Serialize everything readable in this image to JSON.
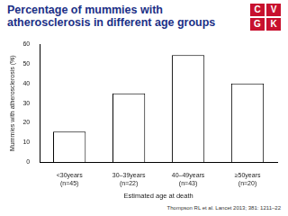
{
  "chart_data": {
    "type": "bar",
    "title": "Percentage of mummies with atherosclerosis in different age groups",
    "logo": [
      "C",
      "V",
      "G",
      "K"
    ],
    "source": "Thompson RL et al. Lancet 2013; 381: 1211–22",
    "x_label": "Estimated age at death",
    "y_label": "Mummies with atherosclerosis (%)",
    "categories": [
      [
        "<30years",
        "(n=45)"
      ],
      [
        "30–39years",
        "(n=22)"
      ],
      [
        "40–49years",
        "(n=43)"
      ],
      [
        "≥50years",
        "(n=20)"
      ]
    ],
    "values": [
      15.5,
      35,
      54.5,
      40
    ],
    "color": "#ffffff",
    "ylim": [
      0,
      60
    ],
    "yticks": [
      0,
      10,
      20,
      30,
      40,
      50,
      60
    ],
    "grid": false
  }
}
